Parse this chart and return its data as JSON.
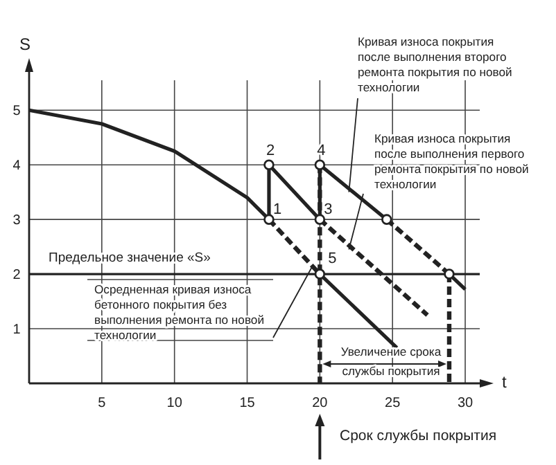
{
  "chart_data": {
    "type": "line",
    "xlabel": "t",
    "ylabel": "S",
    "xlim": [
      0,
      31
    ],
    "ylim": [
      0,
      5.7
    ],
    "xticks": [
      5,
      10,
      15,
      20,
      25,
      30
    ],
    "yticks": [
      1,
      2,
      3,
      4,
      5
    ],
    "grid": true,
    "marker": "none",
    "series": [
      {
        "color": "#222222",
        "line_style": "solid",
        "x": [
          0,
          5,
          10,
          15,
          16.5
        ],
        "values": [
          5,
          4.75,
          4.25,
          3.4,
          3.0
        ]
      },
      {
        "color": "#222222",
        "line_style": "dashed",
        "x": [
          16.5,
          20
        ],
        "values": [
          3,
          2
        ]
      },
      {
        "color": "#222222",
        "line_style": "solid",
        "x": [
          20,
          25.3
        ],
        "values": [
          2,
          0.65
        ]
      },
      {
        "color": "#222222",
        "line_style": "solid",
        "x": [
          16.5,
          16.5,
          20
        ],
        "values": [
          3,
          4,
          3
        ]
      },
      {
        "color": "#222222",
        "line_style": "dashed",
        "x": [
          20,
          27.4
        ],
        "values": [
          3,
          1.25
        ]
      },
      {
        "color": "#222222",
        "line_style": "solid",
        "x": [
          20,
          20,
          24.6
        ],
        "values": [
          3,
          4,
          3
        ]
      },
      {
        "color": "#222222",
        "line_style": "dashed",
        "x": [
          24.6,
          28.9
        ],
        "values": [
          3,
          2
        ]
      },
      {
        "color": "#222222",
        "line_style": "solid",
        "x": [
          28.9,
          30
        ],
        "values": [
          2,
          1.72
        ]
      },
      {
        "color": "#222222",
        "line_style": "dashed",
        "x": [
          20,
          20
        ],
        "values": [
          4,
          0
        ]
      },
      {
        "color": "#222222",
        "line_style": "dashed",
        "x": [
          28.9,
          28.9
        ],
        "values": [
          2,
          0
        ]
      },
      {
        "type": "scatter",
        "color": "#222222",
        "marker": "circle",
        "x": [
          16.5,
          16.5,
          20,
          20,
          20,
          24.6,
          28.9
        ],
        "values": [
          3,
          4,
          3,
          4,
          2,
          3,
          2
        ]
      }
    ],
    "ref_lines": [
      {
        "axis": "y",
        "value": 2,
        "label": "Предельное значение «S»"
      }
    ],
    "annotations": [
      {
        "text": "1",
        "x": 16.5,
        "y": 3
      },
      {
        "text": "2",
        "x": 16.5,
        "y": 4
      },
      {
        "text": "3",
        "x": 20,
        "y": 3
      },
      {
        "text": "4",
        "x": 20,
        "y": 4
      },
      {
        "text": "5",
        "x": 20,
        "y": 2
      },
      {
        "text": "Осредненная кривая износа бетонного покрытия без выполнения ремонта по новой технологии",
        "x": 19.5,
        "y": 2.15
      },
      {
        "text": "Кривая износа покрытия после выполнения второго ремонта покрытия по новой технологии",
        "x": 22,
        "y": 3.5
      },
      {
        "text": "Кривая износа покрытия после выполнения первого ремонта покрытия по новой технологии",
        "x": 22,
        "y": 2.45
      },
      "Увеличение срока службы покрытия",
      "Срок службы покрытия"
    ]
  }
}
